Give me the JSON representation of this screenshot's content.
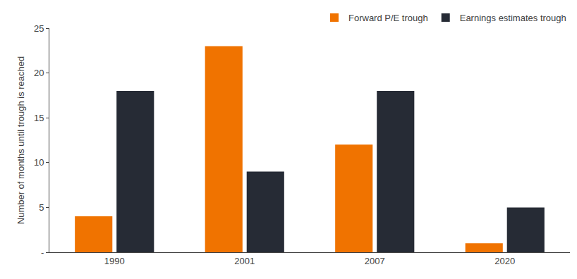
{
  "chart_data": {
    "type": "bar",
    "categories": [
      "1990",
      "2001",
      "2007",
      "2020"
    ],
    "series": [
      {
        "name": "Forward P/E trough",
        "color": "#f07300",
        "values": [
          4,
          23,
          12,
          1
        ]
      },
      {
        "name": "Earnings estimates trough",
        "color": "#262b35",
        "values": [
          18,
          9,
          18,
          5
        ]
      }
    ],
    "y_label": "Number of months until trough is reached",
    "ylim": [
      0,
      25
    ],
    "yticks": [
      {
        "value": 0,
        "label": "-"
      },
      5,
      10,
      15,
      20,
      25
    ],
    "grid": false,
    "legend": "top-right"
  }
}
